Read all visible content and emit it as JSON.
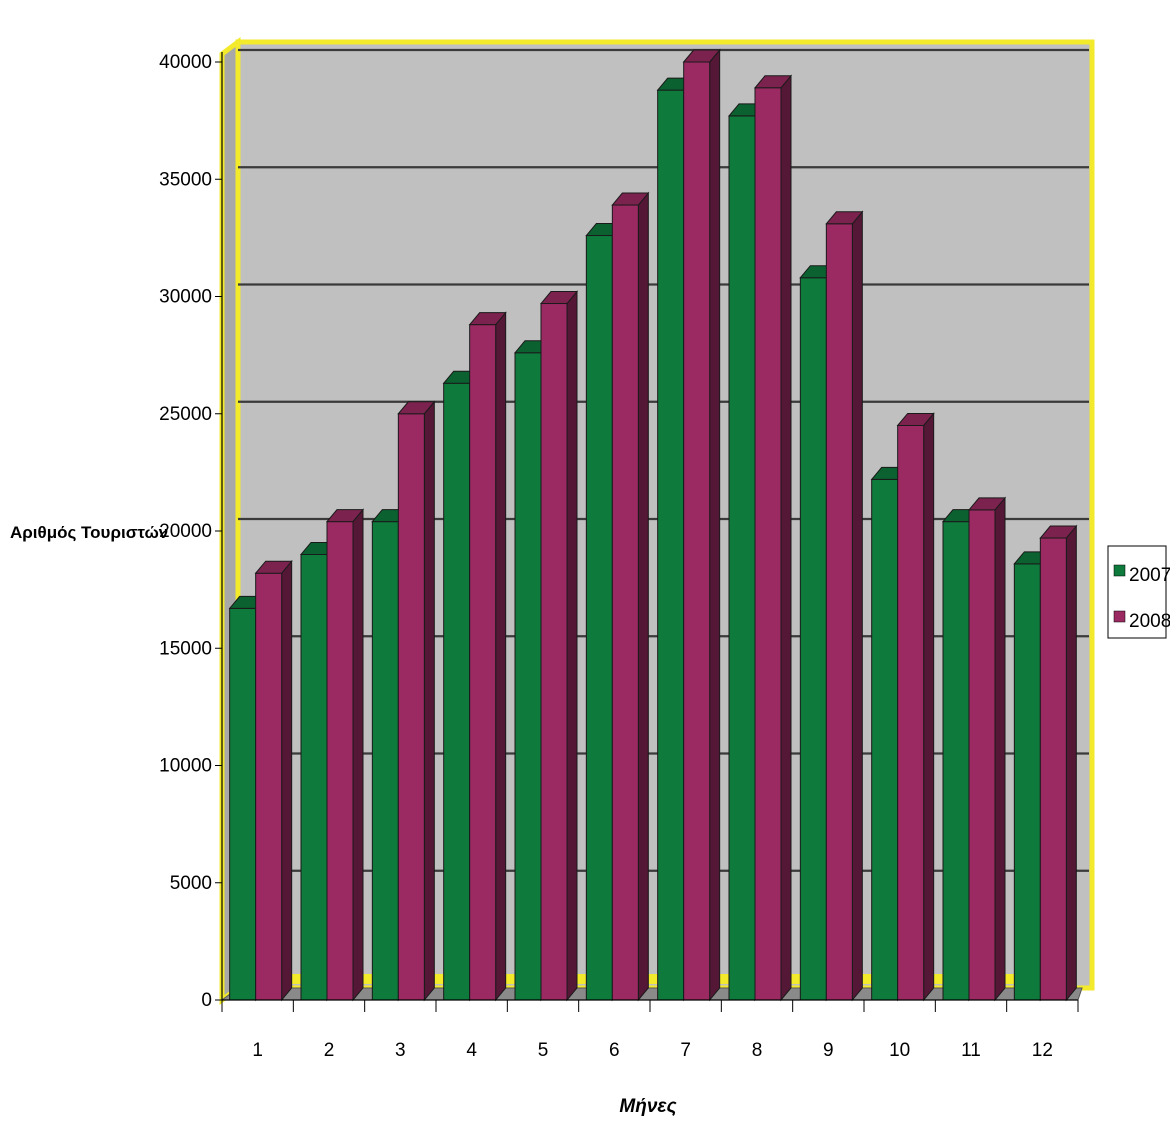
{
  "chart_data": {
    "type": "bar",
    "categories": [
      "1",
      "2",
      "3",
      "4",
      "5",
      "6",
      "7",
      "8",
      "9",
      "10",
      "11",
      "12"
    ],
    "series": [
      {
        "name": "2007",
        "values": [
          16700,
          19000,
          20400,
          26300,
          27600,
          32600,
          38800,
          37700,
          30800,
          22200,
          20400,
          18600
        ]
      },
      {
        "name": "2008",
        "values": [
          18200,
          20400,
          25000,
          28800,
          29700,
          33900,
          40000,
          38900,
          33100,
          24500,
          20900,
          19700
        ]
      }
    ],
    "title": "",
    "xlabel": "Μήνες",
    "ylabel": "Αριθμός Τουριστών",
    "ylim": [
      0,
      40000
    ],
    "yticks": [
      "0",
      "5000",
      "10000",
      "15000",
      "20000",
      "25000",
      "30000",
      "35000",
      "40000"
    ],
    "grid": true,
    "legend": "right",
    "colors": {
      "series_2007": "#0e7a3c",
      "series_2008": "#9b2a62",
      "wall": "#c0c0c0",
      "frame": "#f2ea2a",
      "floor": "#8a8a8a"
    }
  }
}
